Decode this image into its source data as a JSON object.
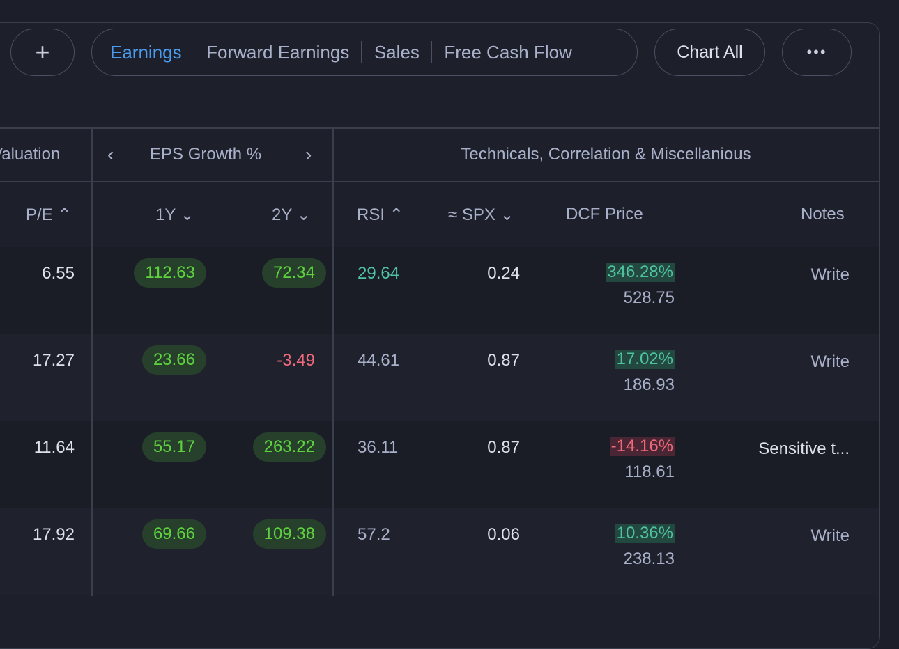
{
  "toolbar": {
    "add_label": "+",
    "tabs": [
      "Earnings",
      "Forward Earnings",
      "Sales",
      "Free Cash Flow"
    ],
    "active_tab": "Earnings",
    "chart_all": "Chart All",
    "more": "•••"
  },
  "groups": {
    "valuation": "Valuation",
    "eps": "EPS Growth %",
    "prev": "‹",
    "next": "›",
    "tech": "Technicals, Correlation & Miscellanious"
  },
  "columns": {
    "pe": "P/E",
    "y1": "1Y",
    "y2": "2Y",
    "rsi": "RSI",
    "spx": "≈ SPX",
    "dcf": "DCF Price",
    "notes": "Notes",
    "up": "⌃",
    "down": "⌄"
  },
  "rows": [
    {
      "pe": "6.55",
      "y1": "112.63",
      "y2": "72.34",
      "y2_type": "chip",
      "rsi": "29.64",
      "rsi_color": "#4fc3a1",
      "spx": "0.24",
      "dcf_pct": "346.28%",
      "dcf_pos": true,
      "dcf_price": "528.75",
      "notes": "Write"
    },
    {
      "pe": "17.27",
      "y1": "23.66",
      "y2": "-3.49",
      "y2_type": "neg",
      "rsi": "44.61",
      "rsi_color": "#a9b0c9",
      "spx": "0.87",
      "dcf_pct": "17.02%",
      "dcf_pos": true,
      "dcf_price": "186.93",
      "notes": "Write"
    },
    {
      "pe": "11.64",
      "y1": "55.17",
      "y2": "263.22",
      "y2_type": "chip",
      "rsi": "36.11",
      "rsi_color": "#a9b0c9",
      "spx": "0.87",
      "dcf_pct": "-14.16%",
      "dcf_pos": false,
      "dcf_price": "118.61",
      "notes": "Sensitive t..."
    },
    {
      "pe": "17.92",
      "y1": "69.66",
      "y2": "109.38",
      "y2_type": "chip",
      "rsi": "57.2",
      "rsi_color": "#a9b0c9",
      "spx": "0.06",
      "dcf_pct": "10.36%",
      "dcf_pos": true,
      "dcf_price": "238.13",
      "notes": "Write"
    }
  ]
}
